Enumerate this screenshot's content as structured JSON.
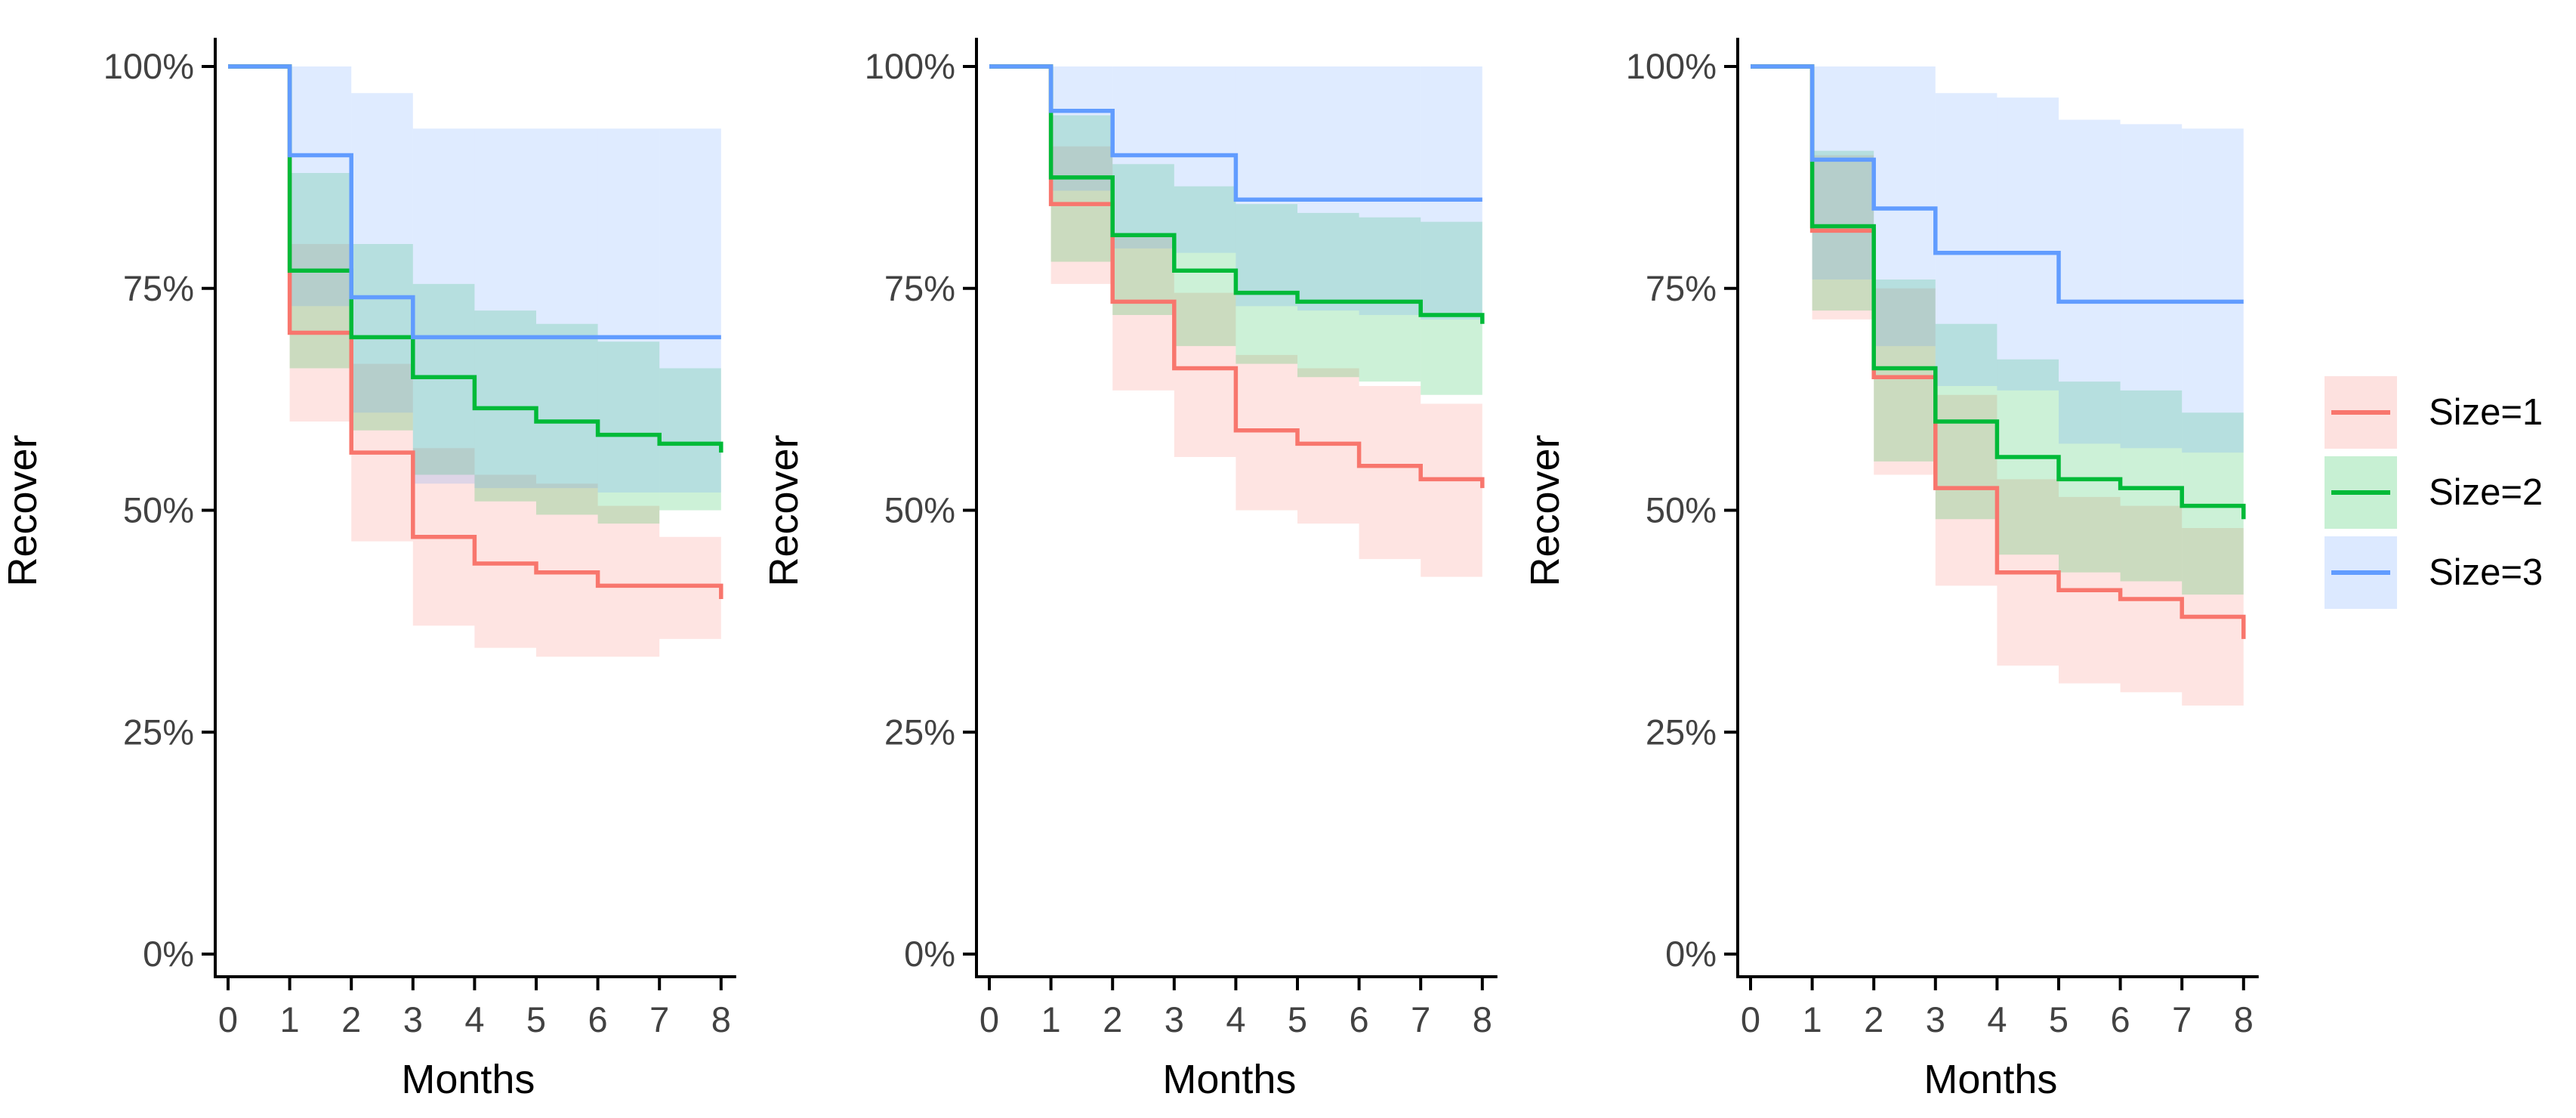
{
  "figure": {
    "background": "#ffffff",
    "n_panels": 3
  },
  "axes": {
    "y_label": "Recover",
    "x_label": "Months",
    "y_ticks": [
      {
        "value": 100,
        "label": "100%"
      },
      {
        "value": 75,
        "label": "75%"
      },
      {
        "value": 50,
        "label": "50%"
      },
      {
        "value": 25,
        "label": "25%"
      },
      {
        "value": 0,
        "label": "0%"
      }
    ],
    "x_ticks": [
      "0",
      "1",
      "2",
      "3",
      "4",
      "5",
      "6",
      "7",
      "8"
    ],
    "tick_label_color": "#424242",
    "axis_color": "#000000",
    "title_color": "#000000"
  },
  "legend": {
    "position": "right",
    "items": [
      {
        "label": "Size=1",
        "color": "#F8766D"
      },
      {
        "label": "Size=2",
        "color": "#00BA38"
      },
      {
        "label": "Size=3",
        "color": "#619CFF"
      }
    ]
  },
  "chart_data": {
    "type": "step",
    "subtype": "kaplan-meier-survival",
    "x": [
      0,
      1,
      2,
      3,
      4,
      5,
      6,
      7,
      8
    ],
    "xlabel": "Months",
    "ylabel": "Recover",
    "ylim": [
      0,
      100
    ],
    "band_opacity": 0.2,
    "note": "levels[i] = percent during month interval [i,i+1); end = value after final drop at month 8; ci arrays cover intervals [1,2]..[7,8]",
    "panels": [
      {
        "name": "left",
        "series": [
          {
            "name": "Size=1",
            "color": "#F8766D",
            "levels": [
              100,
              70,
              56.5,
              47,
              44,
              43,
              41.5,
              41.5
            ],
            "end": 40,
            "ci_lo": [
              60,
              46.5,
              37,
              34.5,
              33.5,
              33.5,
              35.5
            ],
            "ci_hi": [
              80,
              66.5,
              57,
              54,
              53,
              50.5,
              47
            ]
          },
          {
            "name": "Size=2",
            "color": "#00BA38",
            "levels": [
              100,
              77,
              69.5,
              65,
              61.5,
              60,
              58.5,
              57.5
            ],
            "end": 56.5,
            "ci_lo": [
              66,
              59,
              54,
              51,
              49.5,
              48.5,
              50
            ],
            "ci_hi": [
              88,
              80,
              75.5,
              72.5,
              71,
              69,
              66
            ]
          },
          {
            "name": "Size=3",
            "color": "#619CFF",
            "levels": [
              100,
              90,
              74,
              69.5,
              69.5,
              69.5,
              69.5,
              69.5
            ],
            "end": 69.5,
            "ci_lo": [
              73,
              61,
              53,
              52.5,
              52.5,
              52,
              52
            ],
            "ci_hi": [
              100,
              97,
              93,
              93,
              93,
              93,
              93
            ]
          }
        ]
      },
      {
        "name": "middle",
        "series": [
          {
            "name": "Size=1",
            "color": "#F8766D",
            "levels": [
              100,
              84.5,
              73.5,
              66,
              59,
              57.5,
              55,
              53.5
            ],
            "end": 52.5,
            "ci_lo": [
              75.5,
              63.5,
              56,
              50,
              48.5,
              44.5,
              42.5
            ],
            "ci_hi": [
              91,
              81,
              74.5,
              67.5,
              66,
              64,
              62
            ]
          },
          {
            "name": "Size=2",
            "color": "#00BA38",
            "levels": [
              100,
              87.5,
              81,
              77,
              74.5,
              73.5,
              73.5,
              72
            ],
            "end": 71,
            "ci_lo": [
              78,
              72,
              68.5,
              66.5,
              65,
              64.5,
              63
            ],
            "ci_hi": [
              94.5,
              89,
              86.5,
              84.5,
              83.5,
              83,
              82.5
            ]
          },
          {
            "name": "Size=3",
            "color": "#619CFF",
            "levels": [
              100,
              95,
              90,
              90,
              85,
              85,
              85,
              85
            ],
            "end": 85,
            "ci_lo": [
              86,
              79.5,
              79,
              73,
              72.5,
              72,
              71.5
            ],
            "ci_hi": [
              100,
              100,
              100,
              100,
              100,
              100,
              100
            ]
          }
        ]
      },
      {
        "name": "right",
        "series": [
          {
            "name": "Size=1",
            "color": "#F8766D",
            "levels": [
              100,
              81.5,
              65,
              52.5,
              43,
              41,
              40,
              38
            ],
            "end": 35.5,
            "ci_lo": [
              71.5,
              54,
              41.5,
              32.5,
              30.5,
              29.5,
              28
            ],
            "ci_hi": [
              90,
              75,
              63,
              53.5,
              51.5,
              50.5,
              48
            ]
          },
          {
            "name": "Size=2",
            "color": "#00BA38",
            "levels": [
              100,
              82,
              66,
              60,
              56,
              53.5,
              52.5,
              50.5
            ],
            "end": 49,
            "ci_lo": [
              72.5,
              55.5,
              49,
              45,
              43,
              42,
              40.5
            ],
            "ci_hi": [
              90.5,
              76,
              71,
              67,
              64.5,
              63.5,
              61
            ]
          },
          {
            "name": "Size=3",
            "color": "#619CFF",
            "levels": [
              100,
              89.5,
              84,
              79,
              79,
              73.5,
              73.5,
              73.5
            ],
            "end": 73.5,
            "ci_lo": [
              76,
              68.5,
              64,
              63.5,
              57.5,
              57,
              56.5
            ],
            "ci_hi": [
              100,
              100,
              97,
              96.5,
              94,
              93.5,
              93
            ]
          }
        ]
      }
    ]
  }
}
